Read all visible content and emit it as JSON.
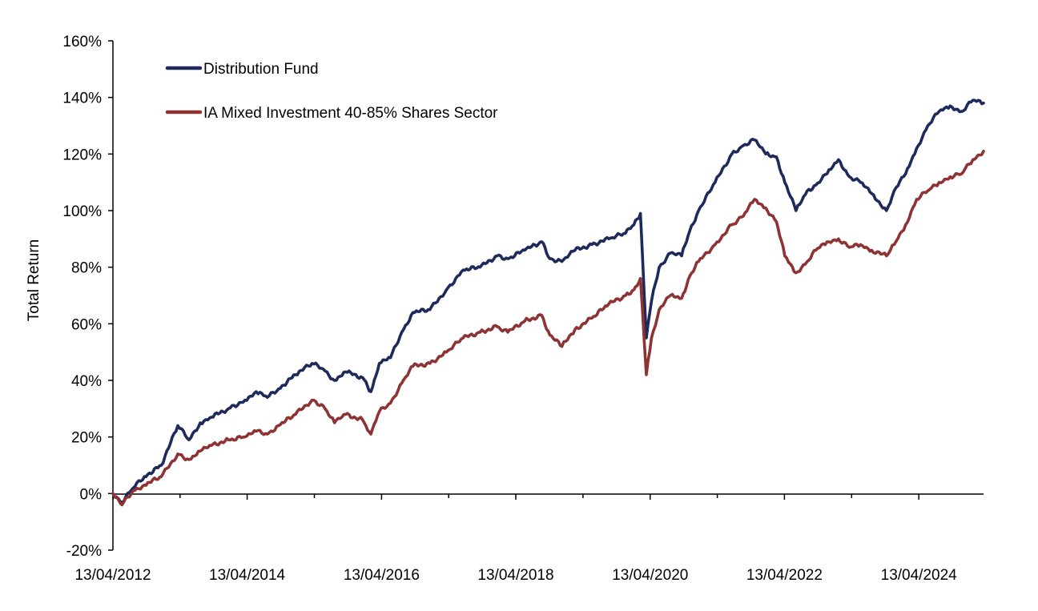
{
  "chart_data": {
    "type": "line",
    "ylabel": "Total Return",
    "xlabel": "",
    "ylim": [
      -20,
      160
    ],
    "yticks": [
      -20,
      0,
      20,
      40,
      60,
      80,
      100,
      120,
      140,
      160
    ],
    "ytick_labels": [
      "-20%",
      "0%",
      "20%",
      "40%",
      "60%",
      "80%",
      "100%",
      "120%",
      "140%",
      "160%"
    ],
    "xlim": [
      "2012-04-13",
      "2025-03-31"
    ],
    "xticks": [
      "2012-04-13",
      "2014-04-13",
      "2016-04-13",
      "2018-04-13",
      "2020-04-13",
      "2022-04-13",
      "2024-04-13"
    ],
    "xtick_labels": [
      "13/04/2012",
      "13/04/2014",
      "13/04/2016",
      "13/04/2018",
      "13/04/2020",
      "13/04/2022",
      "13/04/2024"
    ],
    "grid": false,
    "legend_position": "top-left",
    "series": [
      {
        "name": "Distribution Fund",
        "color": "#1f2a5c",
        "x": [
          "2012-04-13",
          "2012-06-01",
          "2012-08-01",
          "2012-10-01",
          "2013-01-01",
          "2013-04-01",
          "2013-06-01",
          "2013-08-01",
          "2013-10-01",
          "2014-01-01",
          "2014-04-01",
          "2014-06-01",
          "2014-08-01",
          "2014-10-01",
          "2015-01-01",
          "2015-04-01",
          "2015-06-01",
          "2015-08-01",
          "2015-10-01",
          "2016-01-01",
          "2016-02-15",
          "2016-04-01",
          "2016-06-01",
          "2016-08-01",
          "2016-10-01",
          "2017-01-01",
          "2017-04-01",
          "2017-07-01",
          "2017-10-01",
          "2018-01-01",
          "2018-03-01",
          "2018-06-01",
          "2018-09-01",
          "2018-10-15",
          "2018-12-20",
          "2019-03-01",
          "2019-06-01",
          "2019-09-01",
          "2019-12-01",
          "2020-01-15",
          "2020-02-20",
          "2020-03-23",
          "2020-04-20",
          "2020-06-01",
          "2020-08-01",
          "2020-10-01",
          "2020-11-15",
          "2021-01-01",
          "2021-04-01",
          "2021-07-01",
          "2021-09-01",
          "2021-11-01",
          "2022-01-01",
          "2022-03-01",
          "2022-04-15",
          "2022-06-15",
          "2022-08-15",
          "2022-10-01",
          "2022-12-01",
          "2023-02-01",
          "2023-04-01",
          "2023-06-01",
          "2023-08-01",
          "2023-10-20",
          "2023-12-01",
          "2024-02-01",
          "2024-04-01",
          "2024-06-01",
          "2024-08-01",
          "2024-10-01",
          "2024-12-01",
          "2025-02-01",
          "2025-03-31"
        ],
        "values": [
          0,
          -3,
          2,
          6,
          10,
          24,
          19,
          25,
          27,
          30,
          33,
          36,
          34,
          37,
          42,
          46,
          44,
          40,
          43,
          41,
          36,
          46,
          48,
          57,
          64,
          65,
          72,
          79,
          80,
          84,
          83,
          86,
          89,
          83,
          82,
          86,
          88,
          90,
          92,
          95,
          99,
          55,
          68,
          80,
          85,
          84,
          93,
          100,
          110,
          120,
          123,
          125,
          120,
          119,
          110,
          100,
          107,
          109,
          113,
          118,
          112,
          110,
          106,
          100,
          107,
          113,
          122,
          130,
          135,
          137,
          135,
          139,
          138
        ]
      },
      {
        "name": "IA Mixed Investment 40-85% Shares Sector",
        "color": "#8e3333",
        "x": [
          "2012-04-13",
          "2012-06-01",
          "2012-08-01",
          "2012-10-01",
          "2013-01-01",
          "2013-04-01",
          "2013-06-01",
          "2013-08-01",
          "2013-10-01",
          "2014-01-01",
          "2014-04-01",
          "2014-06-01",
          "2014-08-01",
          "2014-10-01",
          "2015-01-01",
          "2015-04-01",
          "2015-06-01",
          "2015-08-01",
          "2015-10-01",
          "2016-01-01",
          "2016-02-15",
          "2016-04-01",
          "2016-06-01",
          "2016-08-01",
          "2016-10-01",
          "2017-01-01",
          "2017-04-01",
          "2017-07-01",
          "2017-10-01",
          "2018-01-01",
          "2018-03-01",
          "2018-06-01",
          "2018-09-01",
          "2018-10-15",
          "2018-12-20",
          "2019-03-01",
          "2019-06-01",
          "2019-09-01",
          "2019-12-01",
          "2020-01-15",
          "2020-02-20",
          "2020-03-23",
          "2020-04-20",
          "2020-06-01",
          "2020-08-01",
          "2020-10-01",
          "2020-11-15",
          "2021-01-01",
          "2021-04-01",
          "2021-07-01",
          "2021-09-01",
          "2021-11-01",
          "2022-01-01",
          "2022-03-01",
          "2022-04-15",
          "2022-06-15",
          "2022-08-15",
          "2022-10-01",
          "2022-12-01",
          "2023-02-01",
          "2023-04-01",
          "2023-06-01",
          "2023-08-01",
          "2023-10-20",
          "2023-12-01",
          "2024-02-01",
          "2024-04-01",
          "2024-06-01",
          "2024-08-01",
          "2024-10-01",
          "2024-12-01",
          "2025-02-01",
          "2025-03-31"
        ],
        "values": [
          0,
          -4,
          1,
          3,
          6,
          14,
          12,
          15,
          17,
          19,
          20,
          22,
          21,
          24,
          28,
          33,
          31,
          25,
          28,
          26,
          21,
          29,
          32,
          39,
          45,
          46,
          50,
          55,
          57,
          59,
          57,
          61,
          63,
          56,
          52,
          58,
          62,
          67,
          70,
          72,
          76,
          42,
          55,
          65,
          70,
          69,
          77,
          82,
          88,
          95,
          98,
          104,
          101,
          96,
          84,
          78,
          82,
          86,
          89,
          90,
          87,
          88,
          86,
          84,
          88,
          95,
          104,
          107,
          110,
          112,
          113,
          118,
          121
        ]
      }
    ]
  }
}
